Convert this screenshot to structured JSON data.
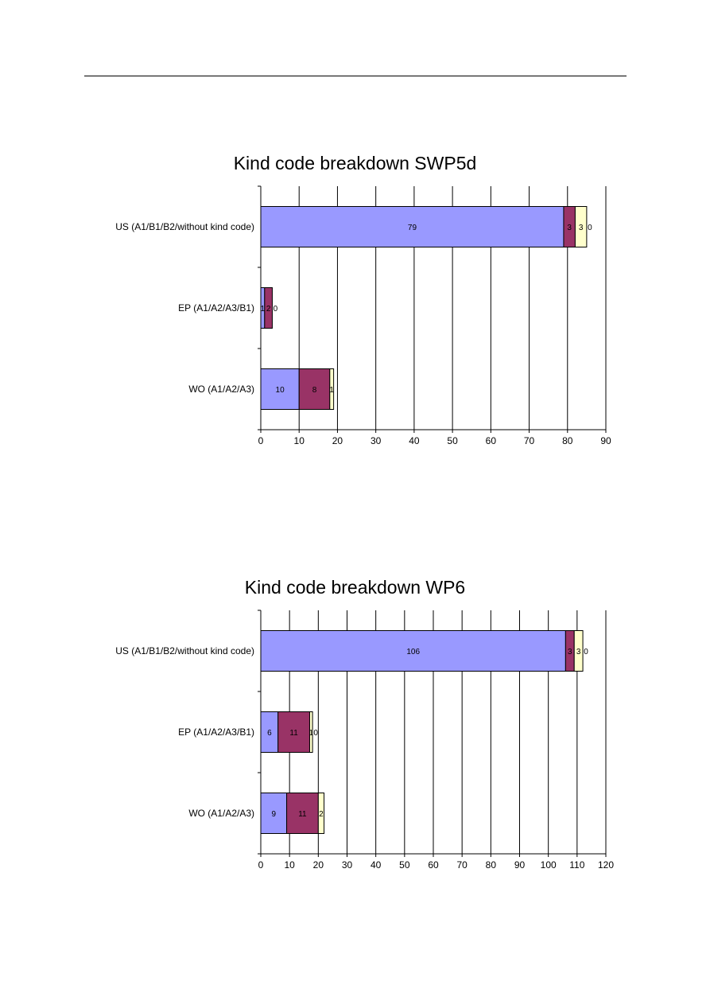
{
  "chart_data": [
    {
      "type": "bar",
      "orientation": "horizontal",
      "stacked": true,
      "title": "Kind code breakdown SWP5d",
      "categories": [
        "US (A1/B1/B2/without kind code)",
        "EP (A1/A2/A3/B1)",
        "WO (A1/A2/A3)"
      ],
      "series": [
        {
          "values": [
            79,
            1,
            10
          ],
          "color": "#9999ff"
        },
        {
          "values": [
            3,
            2,
            8
          ],
          "color": "#993366"
        },
        {
          "values": [
            3,
            0,
            1
          ],
          "color": "#ffffcc"
        },
        {
          "values": [
            0,
            0,
            0
          ],
          "color": "#ffffcc"
        }
      ],
      "data_labels": [
        [
          "79",
          "3",
          "3",
          "0"
        ],
        [
          "1",
          "2",
          "0",
          ""
        ],
        [
          "10",
          "8",
          "1",
          ""
        ]
      ],
      "xlim": [
        0,
        90
      ],
      "xticks": [
        0,
        10,
        20,
        30,
        40,
        50,
        60,
        70,
        80,
        90
      ],
      "grid": true,
      "legend": "none"
    },
    {
      "type": "bar",
      "orientation": "horizontal",
      "stacked": true,
      "title": "Kind code breakdown WP6",
      "categories": [
        "US (A1/B1/B2/without kind code)",
        "EP (A1/A2/A3/B1)",
        "WO (A1/A2/A3)"
      ],
      "series": [
        {
          "values": [
            106,
            6,
            9
          ],
          "color": "#9999ff"
        },
        {
          "values": [
            3,
            11,
            11
          ],
          "color": "#993366"
        },
        {
          "values": [
            3,
            1,
            2
          ],
          "color": "#ffffcc"
        },
        {
          "values": [
            0,
            0,
            0
          ],
          "color": "#ffffcc"
        }
      ],
      "data_labels": [
        [
          "106",
          "3",
          "3",
          "0"
        ],
        [
          "6",
          "11",
          "1",
          "0"
        ],
        [
          "9",
          "11",
          "2",
          ""
        ]
      ],
      "xlim": [
        0,
        120
      ],
      "xticks": [
        0,
        10,
        20,
        30,
        40,
        50,
        60,
        70,
        80,
        90,
        100,
        110,
        120
      ],
      "grid": true,
      "legend": "none"
    }
  ]
}
